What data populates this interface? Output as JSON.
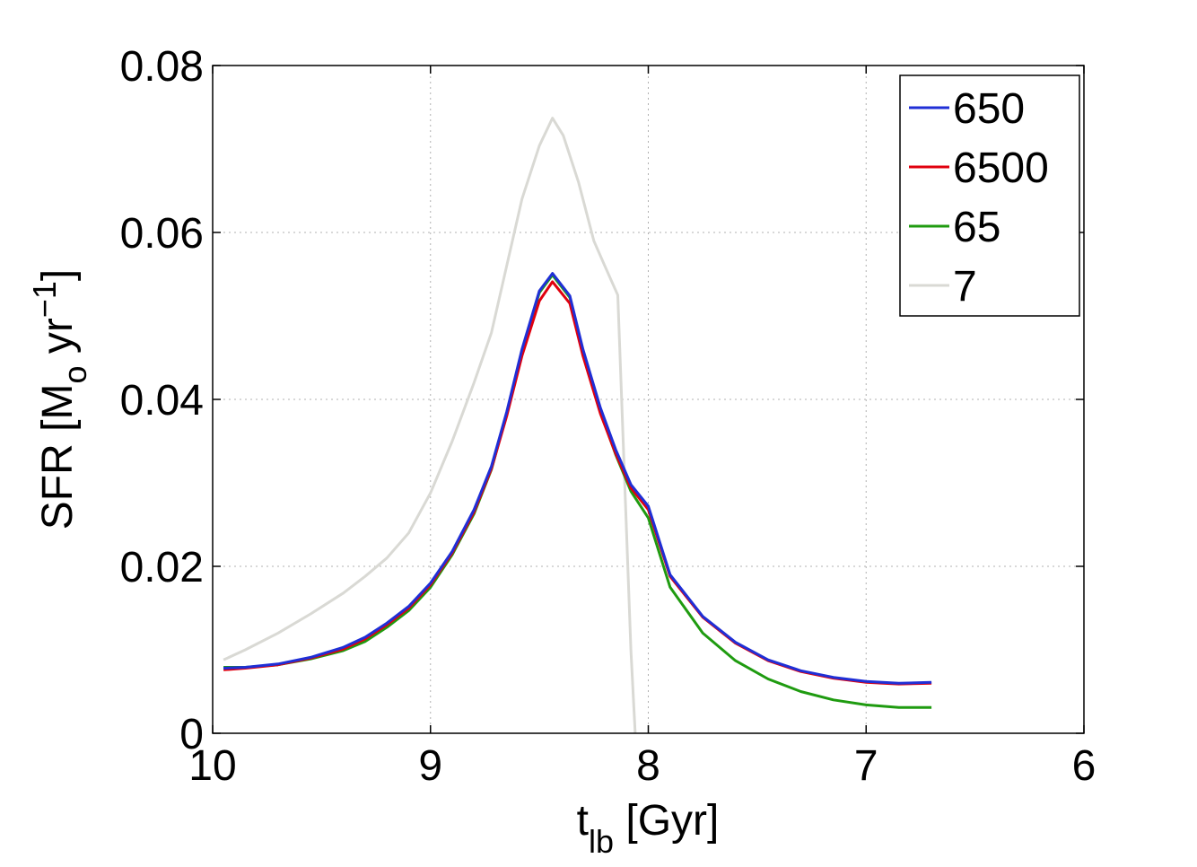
{
  "chart_data": {
    "type": "line",
    "xlabel": "t",
    "xlabel_sub": "lb",
    "xlabel_suffix": " [Gyr]",
    "ylabel_prefix": "SFR [M",
    "ylabel_sub": "o",
    "ylabel_mid": " yr",
    "ylabel_sup": "−1",
    "ylabel_suffix": "]",
    "xlim": [
      10,
      6
    ],
    "x_reversed": true,
    "ylim": [
      0,
      0.08
    ],
    "x_ticks": [
      "10",
      "9",
      "8",
      "7",
      "6"
    ],
    "y_ticks": [
      "0",
      "0.02",
      "0.04",
      "0.06",
      "0.08"
    ],
    "grid": true,
    "legend_position": "top-right",
    "colors": {
      "650": "#1f2fd6",
      "6500": "#e0000e",
      "65": "#1f9b10",
      "7": "#d9d9d4"
    },
    "series": [
      {
        "name": "650",
        "x": [
          9.95,
          9.85,
          9.7,
          9.55,
          9.4,
          9.3,
          9.2,
          9.1,
          9.0,
          8.9,
          8.8,
          8.72,
          8.65,
          8.58,
          8.5,
          8.44,
          8.36,
          8.3,
          8.22,
          8.15,
          8.08,
          8.0,
          7.9,
          7.75,
          7.6,
          7.45,
          7.3,
          7.15,
          7.0,
          6.85,
          6.7
        ],
        "y": [
          0.0078,
          0.0079,
          0.0083,
          0.0091,
          0.0103,
          0.0115,
          0.0132,
          0.0152,
          0.018,
          0.0218,
          0.0268,
          0.032,
          0.0385,
          0.046,
          0.053,
          0.0551,
          0.0524,
          0.046,
          0.039,
          0.034,
          0.0298,
          0.0272,
          0.019,
          0.014,
          0.0109,
          0.0088,
          0.0075,
          0.0067,
          0.0062,
          0.006,
          0.0061
        ]
      },
      {
        "name": "6500",
        "x": [
          9.95,
          9.85,
          9.7,
          9.55,
          9.4,
          9.3,
          9.2,
          9.1,
          9.0,
          8.9,
          8.8,
          8.72,
          8.65,
          8.58,
          8.5,
          8.44,
          8.36,
          8.3,
          8.22,
          8.15,
          8.08,
          8.0,
          7.9,
          7.75,
          7.6,
          7.45,
          7.3,
          7.15,
          7.0,
          6.85,
          6.7
        ],
        "y": [
          0.0076,
          0.0078,
          0.0082,
          0.009,
          0.0101,
          0.0113,
          0.013,
          0.015,
          0.0178,
          0.0216,
          0.0265,
          0.0317,
          0.038,
          0.0452,
          0.0518,
          0.0541,
          0.0515,
          0.0452,
          0.0383,
          0.0335,
          0.0294,
          0.0268,
          0.0188,
          0.0139,
          0.0108,
          0.0087,
          0.0074,
          0.0066,
          0.0061,
          0.0059,
          0.006
        ]
      },
      {
        "name": "65",
        "x": [
          9.95,
          9.85,
          9.7,
          9.55,
          9.4,
          9.3,
          9.2,
          9.1,
          9.0,
          8.9,
          8.8,
          8.72,
          8.65,
          8.58,
          8.5,
          8.44,
          8.36,
          8.3,
          8.22,
          8.15,
          8.08,
          8.0,
          7.9,
          7.75,
          7.6,
          7.45,
          7.3,
          7.15,
          7.0,
          6.85,
          6.7
        ],
        "y": [
          0.0079,
          0.0079,
          0.0082,
          0.0089,
          0.0099,
          0.011,
          0.0127,
          0.0147,
          0.0175,
          0.0214,
          0.0263,
          0.0316,
          0.0383,
          0.0458,
          0.0528,
          0.0549,
          0.0522,
          0.0456,
          0.0385,
          0.0334,
          0.029,
          0.0258,
          0.0175,
          0.012,
          0.0087,
          0.0065,
          0.005,
          0.004,
          0.0034,
          0.0031,
          0.0031
        ]
      },
      {
        "name": "7",
        "x": [
          9.95,
          9.85,
          9.7,
          9.55,
          9.4,
          9.3,
          9.2,
          9.1,
          9.0,
          8.9,
          8.8,
          8.72,
          8.65,
          8.58,
          8.5,
          8.44,
          8.39,
          8.32,
          8.25,
          8.2,
          8.14,
          8.08,
          8.06
        ],
        "y": [
          0.0088,
          0.01,
          0.012,
          0.0143,
          0.0168,
          0.0188,
          0.021,
          0.024,
          0.0288,
          0.035,
          0.042,
          0.048,
          0.056,
          0.064,
          0.0704,
          0.0737,
          0.0716,
          0.066,
          0.059,
          0.056,
          0.0525,
          0.01,
          0.0
        ]
      }
    ]
  }
}
